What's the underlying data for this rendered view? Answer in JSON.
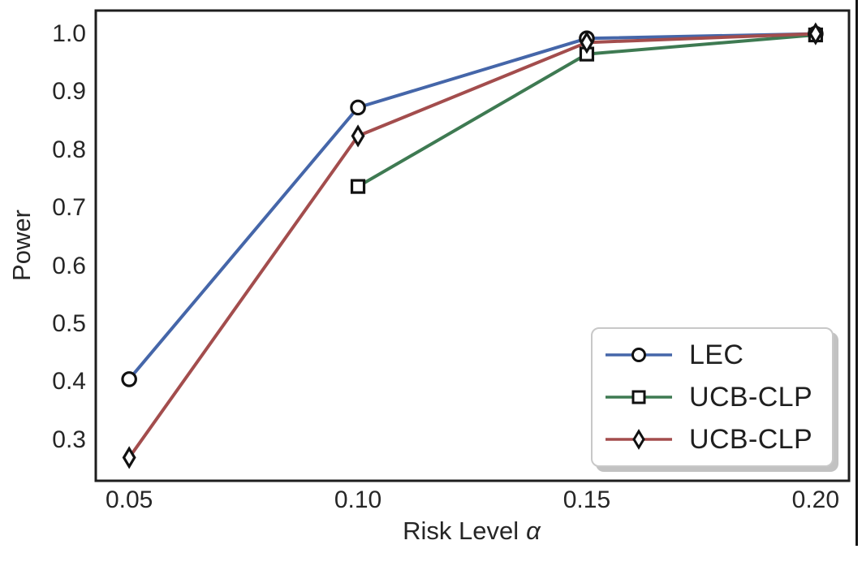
{
  "chart_data": {
    "type": "line",
    "title": "",
    "xlabel_text": "Risk Level",
    "xlabel_symbol": "α",
    "ylabel": "Power",
    "xlim": [
      0.0427,
      0.2073
    ],
    "ylim": [
      0.23,
      1.04
    ],
    "grid": false,
    "background": "#ffffff",
    "axis_color": "#1e1e1e",
    "text_color": "#262626",
    "marker_edge_color": "#111111",
    "marker_fill_color": "#ffffff",
    "xticks": {
      "values": [
        0.05,
        0.1,
        0.15,
        0.2
      ],
      "labels": [
        "0.05",
        "0.10",
        "0.15",
        "0.20"
      ]
    },
    "yticks": {
      "values": [
        0.3,
        0.4,
        0.5,
        0.6,
        0.7,
        0.8,
        0.9,
        1.0
      ],
      "labels": [
        "0.3",
        "0.4",
        "0.5",
        "0.6",
        "0.7",
        "0.8",
        "0.9",
        "1.0"
      ]
    },
    "legend_position": "lower right",
    "legend_fancybox": true,
    "legend_shadow": true,
    "series": [
      {
        "name": "LEC",
        "color": "#4566A9",
        "marker": "circle",
        "x": [
          0.05,
          0.1,
          0.15,
          0.2
        ],
        "y": [
          0.405,
          0.873,
          0.992,
          1.0
        ]
      },
      {
        "name": "UCB-CLP",
        "color": "#3E7A52",
        "marker": "square",
        "x": [
          0.1,
          0.15,
          0.2
        ],
        "y": [
          0.737,
          0.965,
          0.998
        ]
      },
      {
        "name": "UCB-CLP",
        "color": "#A34D4D",
        "marker": "diamond",
        "x": [
          0.05,
          0.1,
          0.15,
          0.2
        ],
        "y": [
          0.27,
          0.824,
          0.985,
          1.0
        ]
      }
    ]
  }
}
